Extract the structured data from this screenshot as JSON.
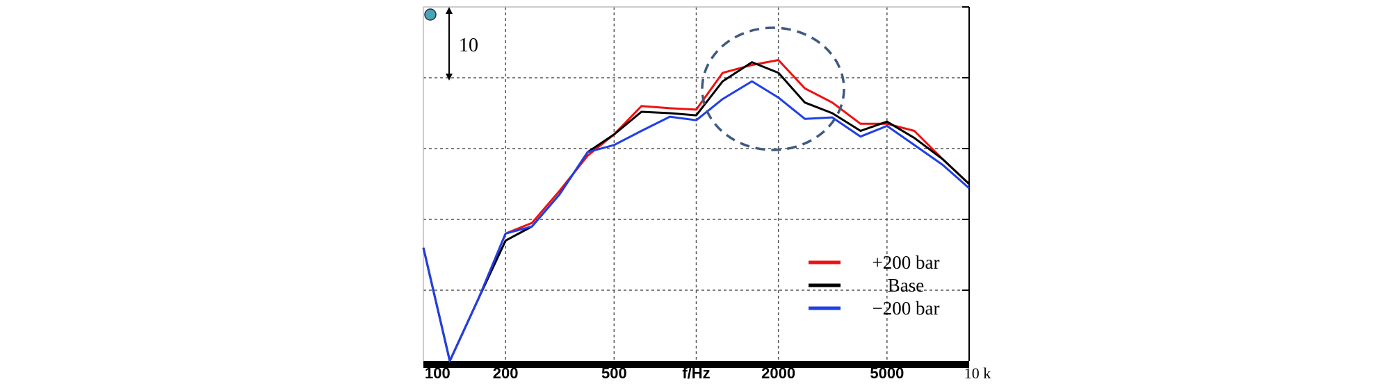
{
  "chart_data": {
    "type": "line",
    "title": "",
    "xlabel": "f/Hz",
    "ylabel": "",
    "x_scale": "log",
    "xlim": [
      100,
      10000
    ],
    "ylim": [
      -50,
      0
    ],
    "grid": true,
    "x_ticks": [
      {
        "value": 100,
        "label": "100"
      },
      {
        "value": 200,
        "label": "200"
      },
      {
        "value": 500,
        "label": "500"
      },
      {
        "value": 1000,
        "label": "f/Hz"
      },
      {
        "value": 2000,
        "label": "2000"
      },
      {
        "value": 5000,
        "label": "5000"
      },
      {
        "value": 10000,
        "label": "10 k"
      }
    ],
    "y_gridlines": [
      -10,
      -20,
      -30,
      -40
    ],
    "scale_annotation": "10",
    "legend_position": "bottom-right",
    "series": [
      {
        "name": "+200 bar",
        "color": "#ee1111",
        "x": [
          100,
          125,
          160,
          200,
          250,
          315,
          400,
          500,
          630,
          800,
          1000,
          1250,
          1600,
          2000,
          2500,
          3150,
          4000,
          5000,
          6300,
          8000,
          10000
        ],
        "y": [
          -34,
          -50,
          -41,
          -32,
          -30.5,
          -26,
          -21,
          -18,
          -14,
          -14.3,
          -14.5,
          -9.3,
          -8.2,
          -7.5,
          -11.5,
          -13.5,
          -16.5,
          -16.5,
          -17.5,
          -21.5,
          -25
        ]
      },
      {
        "name": "Base",
        "color": "#000000",
        "x": [
          100,
          125,
          160,
          200,
          250,
          315,
          400,
          500,
          630,
          800,
          1000,
          1250,
          1600,
          2000,
          2500,
          3150,
          4000,
          5000,
          6300,
          8000,
          10000
        ],
        "y": [
          -34,
          -50,
          -41,
          -33,
          -31,
          -26.5,
          -20.5,
          -18,
          -14.8,
          -15,
          -15.3,
          -10.5,
          -7.8,
          -9.3,
          -13.5,
          -15,
          -17.5,
          -16.2,
          -18.5,
          -21.5,
          -25
        ]
      },
      {
        "name": "−200 bar",
        "color": "#1f3fe8",
        "x": [
          100,
          125,
          160,
          200,
          250,
          315,
          400,
          500,
          630,
          800,
          1000,
          1250,
          1600,
          2000,
          2500,
          3150,
          4000,
          5000,
          6300,
          8000,
          10000
        ],
        "y": [
          -34,
          -50,
          -41,
          -32,
          -31,
          -26.5,
          -20.5,
          -19.5,
          -17.5,
          -15.5,
          -16,
          -13,
          -10.5,
          -12.8,
          -15.8,
          -15.6,
          -18.3,
          -16.8,
          -19.5,
          -22.3,
          -25.6
        ]
      }
    ]
  }
}
